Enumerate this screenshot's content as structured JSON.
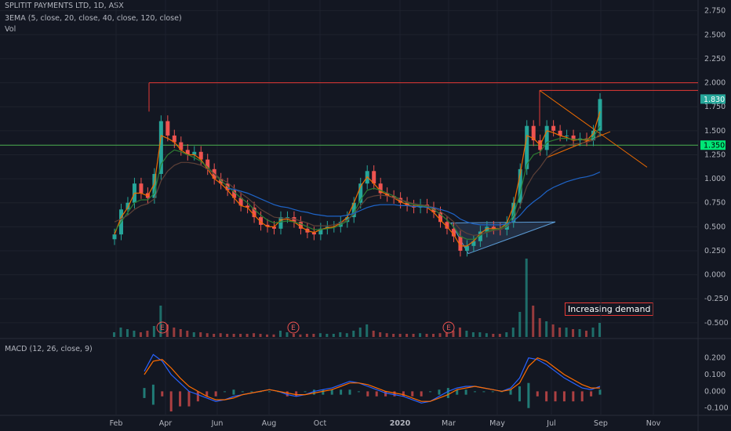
{
  "legend": {
    "title": "SPLITIT PAYMENTS LTD, 1D, ASX",
    "ema": "3EMA (5, close, 20, close, 40, close, 120, close)",
    "vol": "Vol",
    "macd": "MACD (12, 26, close, 9)"
  },
  "annotation": "Increasing demand",
  "earnings_marker": "E",
  "colors": {
    "background": "#131722",
    "grid": "#1e222d",
    "up": "#26a69a",
    "down": "#ef5350",
    "ema_fast": "#ef6c00",
    "ema_mid": "#2e7d32",
    "ema_slow": "#1e64c8",
    "macd": "#2962ff",
    "signal": "#ff6d00",
    "resistance": "#e53935",
    "support": "#4caf50",
    "triangle_fill": "#2a3950",
    "triangle_edge": "#5b9bd5"
  },
  "chart_data": [
    {
      "type": "candlestick",
      "symbol": "SPLITIT PAYMENTS LTD",
      "interval": "1D",
      "exchange": "ASX",
      "x_labels": [
        "Feb",
        "Apr",
        "Jun",
        "Aug",
        "Oct",
        "2020",
        "Mar",
        "May",
        "Jul",
        "Sep",
        "Nov"
      ],
      "bold_x_labels": [
        "2020"
      ],
      "y_ticks": [
        "2.750",
        "2.500",
        "2.250",
        "2.000",
        "1.750",
        "1.500",
        "1.250",
        "1.000",
        "0.750",
        "0.500",
        "0.250",
        "0.000",
        "-0.250",
        "-0.500"
      ],
      "ylim": [
        -0.55,
        2.78
      ],
      "close_series": [
        0.42,
        0.68,
        0.75,
        0.95,
        0.85,
        0.8,
        1.05,
        1.6,
        1.45,
        1.38,
        1.3,
        1.25,
        1.28,
        1.2,
        1.1,
        1.0,
        0.95,
        0.88,
        0.8,
        0.72,
        0.7,
        0.6,
        0.52,
        0.5,
        0.48,
        0.6,
        0.6,
        0.55,
        0.48,
        0.44,
        0.42,
        0.48,
        0.5,
        0.5,
        0.55,
        0.6,
        0.75,
        0.95,
        1.08,
        0.95,
        0.85,
        0.82,
        0.8,
        0.75,
        0.72,
        0.7,
        0.73,
        0.7,
        0.65,
        0.55,
        0.48,
        0.4,
        0.25,
        0.3,
        0.35,
        0.45,
        0.5,
        0.48,
        0.47,
        0.55,
        0.75,
        1.1,
        1.55,
        1.4,
        1.3,
        1.55,
        1.5,
        1.45,
        1.45,
        1.4,
        1.42,
        1.4,
        1.5,
        1.83
      ],
      "ema_5": [
        0.42,
        0.6,
        0.7,
        0.85,
        0.85,
        0.82,
        0.95,
        1.45,
        1.42,
        1.38,
        1.3,
        1.25,
        1.25,
        1.2,
        1.1,
        1.0,
        0.95,
        0.88,
        0.8,
        0.72,
        0.7,
        0.62,
        0.55,
        0.5,
        0.5,
        0.57,
        0.58,
        0.55,
        0.5,
        0.46,
        0.44,
        0.47,
        0.49,
        0.5,
        0.54,
        0.6,
        0.75,
        0.92,
        1.02,
        0.95,
        0.87,
        0.83,
        0.8,
        0.76,
        0.73,
        0.71,
        0.72,
        0.7,
        0.65,
        0.57,
        0.5,
        0.42,
        0.3,
        0.3,
        0.35,
        0.43,
        0.48,
        0.48,
        0.48,
        0.54,
        0.72,
        1.05,
        1.45,
        1.42,
        1.35,
        1.5,
        1.48,
        1.45,
        1.43,
        1.4,
        1.41,
        1.4,
        1.47,
        1.7
      ],
      "ema_20": [
        0.45,
        0.55,
        0.65,
        0.75,
        0.78,
        0.78,
        0.85,
        1.15,
        1.25,
        1.3,
        1.28,
        1.25,
        1.22,
        1.18,
        1.12,
        1.05,
        0.98,
        0.92,
        0.86,
        0.8,
        0.75,
        0.68,
        0.62,
        0.57,
        0.54,
        0.55,
        0.56,
        0.55,
        0.53,
        0.5,
        0.47,
        0.47,
        0.48,
        0.49,
        0.52,
        0.56,
        0.65,
        0.78,
        0.88,
        0.9,
        0.88,
        0.85,
        0.82,
        0.78,
        0.75,
        0.73,
        0.72,
        0.71,
        0.68,
        0.63,
        0.57,
        0.5,
        0.4,
        0.37,
        0.37,
        0.41,
        0.45,
        0.47,
        0.48,
        0.52,
        0.62,
        0.85,
        1.15,
        1.25,
        1.28,
        1.38,
        1.4,
        1.42,
        1.42,
        1.41,
        1.41,
        1.41,
        1.43,
        1.55
      ],
      "ema_40": [
        0.55,
        0.58,
        0.62,
        0.68,
        0.72,
        0.74,
        0.79,
        0.98,
        1.08,
        1.14,
        1.17,
        1.17,
        1.16,
        1.14,
        1.1,
        1.05,
        1.0,
        0.96,
        0.9,
        0.85,
        0.8,
        0.74,
        0.68,
        0.64,
        0.6,
        0.59,
        0.59,
        0.58,
        0.56,
        0.54,
        0.51,
        0.51,
        0.51,
        0.52,
        0.54,
        0.57,
        0.63,
        0.72,
        0.8,
        0.82,
        0.83,
        0.82,
        0.8,
        0.78,
        0.76,
        0.74,
        0.73,
        0.72,
        0.7,
        0.66,
        0.61,
        0.55,
        0.47,
        0.43,
        0.41,
        0.42,
        0.44,
        0.46,
        0.47,
        0.5,
        0.57,
        0.72,
        0.92,
        1.04,
        1.12,
        1.22,
        1.28,
        1.32,
        1.35,
        1.36,
        1.37,
        1.38,
        1.4,
        1.47
      ],
      "ema_120": [
        null,
        null,
        null,
        null,
        null,
        null,
        null,
        null,
        null,
        null,
        null,
        null,
        null,
        null,
        null,
        null,
        null,
        0.9,
        0.89,
        0.87,
        0.85,
        0.82,
        0.79,
        0.76,
        0.73,
        0.71,
        0.7,
        0.68,
        0.66,
        0.65,
        0.63,
        0.62,
        0.61,
        0.61,
        0.61,
        0.62,
        0.64,
        0.67,
        0.7,
        0.72,
        0.73,
        0.73,
        0.73,
        0.72,
        0.72,
        0.71,
        0.71,
        0.7,
        0.7,
        0.68,
        0.66,
        0.63,
        0.58,
        0.55,
        0.53,
        0.52,
        0.52,
        0.52,
        0.52,
        0.53,
        0.56,
        0.62,
        0.7,
        0.76,
        0.81,
        0.87,
        0.91,
        0.94,
        0.97,
        0.99,
        1.01,
        1.02,
        1.04,
        1.07
      ],
      "volume_relative": [
        0.15,
        0.3,
        0.25,
        0.2,
        0.15,
        0.2,
        0.35,
        1.0,
        0.4,
        0.3,
        0.25,
        0.2,
        0.15,
        0.15,
        0.12,
        0.1,
        0.12,
        0.1,
        0.1,
        0.1,
        0.1,
        0.12,
        0.1,
        0.08,
        0.08,
        0.2,
        0.15,
        0.1,
        0.08,
        0.1,
        0.1,
        0.12,
        0.1,
        0.1,
        0.15,
        0.12,
        0.2,
        0.3,
        0.4,
        0.2,
        0.15,
        0.12,
        0.1,
        0.1,
        0.1,
        0.1,
        0.12,
        0.1,
        0.1,
        0.12,
        0.15,
        0.2,
        0.3,
        0.2,
        0.15,
        0.15,
        0.12,
        0.1,
        0.1,
        0.15,
        0.3,
        0.8,
        2.5,
        1.0,
        0.6,
        0.5,
        0.4,
        0.3,
        0.3,
        0.25,
        0.25,
        0.2,
        0.3,
        0.45
      ],
      "price_tags": [
        {
          "label": "1.830",
          "value": 1.83
        },
        {
          "label": "1.350",
          "value": 1.35
        }
      ],
      "horizontal_lines": [
        {
          "kind": "resistance",
          "value": 2.0
        },
        {
          "kind": "support",
          "value": 1.35
        }
      ],
      "earnings_dates": [
        "Mar",
        "Aug",
        "Feb"
      ],
      "annotations": [
        "Increasing demand"
      ]
    },
    {
      "type": "line",
      "name": "MACD (12, 26, close, 9)",
      "y_ticks": [
        "0.200",
        "0.100",
        "0.000",
        "-0.100"
      ],
      "ylim": [
        -0.12,
        0.25
      ],
      "macd_series": [
        0.12,
        0.22,
        0.18,
        0.1,
        0.05,
        0.0,
        -0.02,
        -0.04,
        -0.06,
        -0.05,
        -0.03,
        -0.02,
        -0.01,
        0.0,
        0.01,
        0.0,
        -0.02,
        -0.03,
        -0.02,
        0.0,
        0.01,
        0.02,
        0.04,
        0.06,
        0.05,
        0.03,
        0.01,
        -0.01,
        -0.02,
        -0.03,
        -0.05,
        -0.07,
        -0.06,
        -0.03,
        0.0,
        0.02,
        0.03,
        0.03,
        0.02,
        0.01,
        0.0,
        0.02,
        0.08,
        0.2,
        0.19,
        0.16,
        0.12,
        0.08,
        0.05,
        0.02,
        0.01,
        0.03
      ],
      "signal_series": [
        0.1,
        0.18,
        0.19,
        0.14,
        0.08,
        0.03,
        0.0,
        -0.03,
        -0.05,
        -0.05,
        -0.04,
        -0.02,
        -0.01,
        0.0,
        0.01,
        0.0,
        -0.01,
        -0.02,
        -0.02,
        -0.01,
        0.0,
        0.01,
        0.03,
        0.05,
        0.05,
        0.04,
        0.02,
        0.0,
        -0.01,
        -0.02,
        -0.04,
        -0.06,
        -0.06,
        -0.04,
        -0.02,
        0.01,
        0.02,
        0.03,
        0.02,
        0.01,
        0.0,
        0.01,
        0.05,
        0.15,
        0.2,
        0.18,
        0.14,
        0.1,
        0.07,
        0.04,
        0.02,
        0.02
      ]
    }
  ]
}
